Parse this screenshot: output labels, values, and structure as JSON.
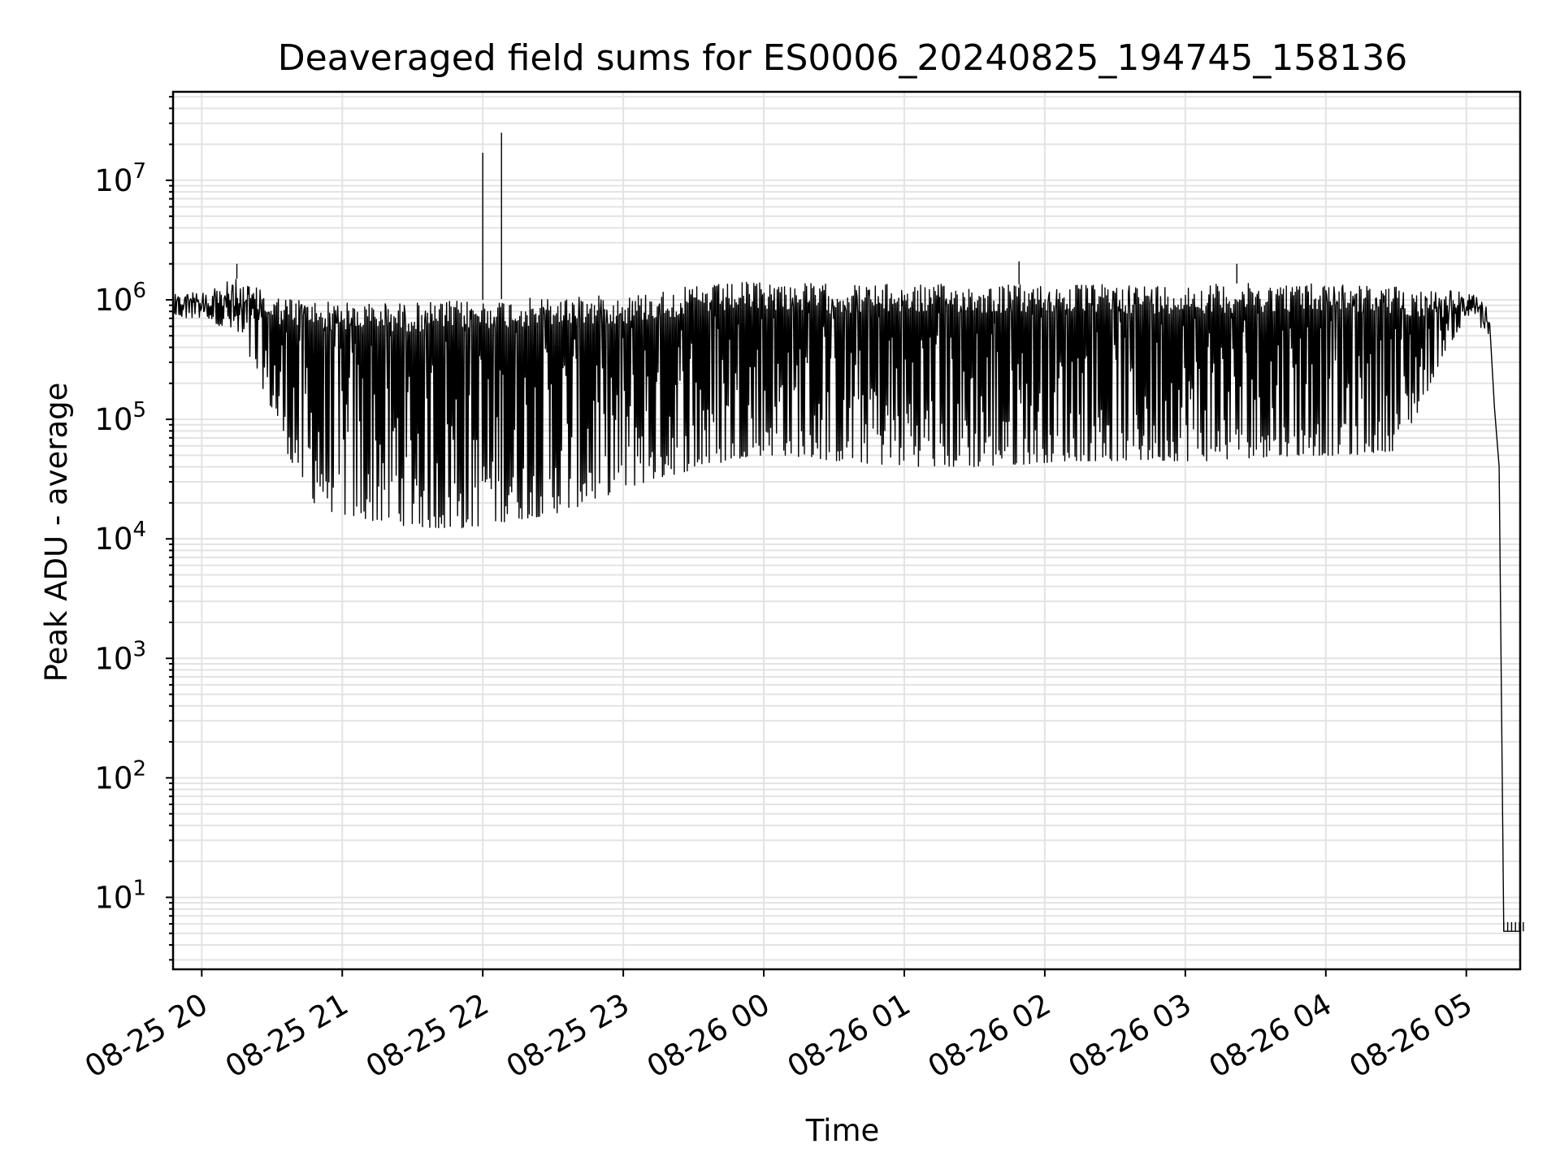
{
  "chart_data": {
    "type": "line",
    "title": "Deaveraged field sums for ES0006_20240825_194745_158136",
    "xlabel": "Time",
    "ylabel": "Peak ADU - average",
    "yscale": "log",
    "ylim": [
      2.5,
      55000000
    ],
    "xlim": [
      "2024-08-25 19:47:45",
      "2024-08-26 05:23:00"
    ],
    "grid": true,
    "line_color": "#000000",
    "x_ticks": [
      {
        "t": "2024-08-25 20:00",
        "label": "08-25 20"
      },
      {
        "t": "2024-08-25 21:00",
        "label": "08-25 21"
      },
      {
        "t": "2024-08-25 22:00",
        "label": "08-25 22"
      },
      {
        "t": "2024-08-25 23:00",
        "label": "08-25 23"
      },
      {
        "t": "2024-08-26 00:00",
        "label": "08-26 00"
      },
      {
        "t": "2024-08-26 01:00",
        "label": "08-26 01"
      },
      {
        "t": "2024-08-26 02:00",
        "label": "08-26 02"
      },
      {
        "t": "2024-08-26 03:00",
        "label": "08-26 03"
      },
      {
        "t": "2024-08-26 04:00",
        "label": "08-26 04"
      },
      {
        "t": "2024-08-26 05:00",
        "label": "08-26 05"
      }
    ],
    "y_ticks": [
      {
        "value": 10,
        "base": "10",
        "exp": "1"
      },
      {
        "value": 100,
        "base": "10",
        "exp": "2"
      },
      {
        "value": 1000,
        "base": "10",
        "exp": "3"
      },
      {
        "value": 10000,
        "base": "10",
        "exp": "4"
      },
      {
        "value": 100000,
        "base": "10",
        "exp": "5"
      },
      {
        "value": 1000000,
        "base": "10",
        "exp": "6"
      },
      {
        "value": 10000000,
        "base": "10",
        "exp": "7"
      }
    ],
    "series": [
      {
        "points": [
          [
            "2024-08-25 19:47:45",
            850000
          ],
          [
            "2024-08-25 19:52",
            900000
          ],
          [
            "2024-08-25 19:57",
            1000000
          ],
          [
            "2024-08-25 20:03",
            700000
          ],
          [
            "2024-08-25 20:08",
            600000
          ],
          [
            "2024-08-25 20:13",
            550000
          ],
          [
            "2024-08-25 20:18",
            400000
          ],
          [
            "2024-08-25 20:23",
            250000
          ],
          [
            "2024-08-25 20:28",
            150000
          ],
          [
            "2024-08-25 20:33",
            80000
          ],
          [
            "2024-08-25 20:38",
            45000
          ],
          [
            "2024-08-25 20:43",
            28000
          ],
          [
            "2024-08-25 20:48",
            20000
          ],
          [
            "2024-08-25 20:55",
            17000
          ],
          [
            "2024-08-25 21:05",
            15000
          ],
          [
            "2024-08-25 21:15",
            14000
          ],
          [
            "2024-08-25 21:25",
            13000
          ],
          [
            "2024-08-25 21:35",
            12500
          ],
          [
            "2024-08-25 21:45",
            12000
          ],
          [
            "2024-08-25 21:55",
            12500
          ],
          [
            "2024-08-25 22:05",
            13500
          ],
          [
            "2024-08-25 22:15",
            14500
          ],
          [
            "2024-08-25 22:25",
            15500
          ],
          [
            "2024-08-25 22:35",
            17000
          ],
          [
            "2024-08-25 22:45",
            20000
          ],
          [
            "2024-08-25 22:55",
            24000
          ],
          [
            "2024-08-25 23:05",
            28000
          ],
          [
            "2024-08-25 23:15",
            32000
          ],
          [
            "2024-08-25 23:25",
            36000
          ],
          [
            "2024-08-25 23:35",
            40000
          ],
          [
            "2024-08-25 23:45",
            45000
          ],
          [
            "2024-08-25 23:55",
            50000
          ],
          [
            "2024-08-26 00:10",
            50000
          ],
          [
            "2024-08-26 00:30",
            45000
          ],
          [
            "2024-08-26 00:50",
            42000
          ],
          [
            "2024-08-26 01:10",
            40000
          ],
          [
            "2024-08-26 01:30",
            40000
          ],
          [
            "2024-08-26 01:50",
            42000
          ],
          [
            "2024-08-26 02:10",
            45000
          ],
          [
            "2024-08-26 02:30",
            45000
          ],
          [
            "2024-08-26 02:50",
            45000
          ],
          [
            "2024-08-26 03:10",
            45000
          ],
          [
            "2024-08-26 03:30",
            48000
          ],
          [
            "2024-08-26 03:50",
            50000
          ],
          [
            "2024-08-26 04:10",
            50000
          ],
          [
            "2024-08-26 04:30",
            55000
          ],
          [
            "2024-08-26 04:40",
            120000
          ],
          [
            "2024-08-26 04:50",
            350000
          ],
          [
            "2024-08-26 05:00",
            700000
          ],
          [
            "2024-08-26 05:05",
            900000
          ],
          [
            "2024-08-26 05:10",
            400000
          ],
          [
            "2024-08-26 05:14",
            40000
          ],
          [
            "2024-08-26 05:16",
            5.2
          ],
          [
            "2024-08-26 05:23",
            5.2
          ]
        ],
        "upper_envelope": [
          [
            "2024-08-25 19:47:45",
            1100000
          ],
          [
            "2024-08-25 20:15",
            1500000
          ],
          [
            "2024-08-25 20:30",
            1100000
          ],
          [
            "2024-08-25 21:00",
            950000
          ],
          [
            "2024-08-25 21:30",
            950000
          ],
          [
            "2024-08-25 22:00",
            1000000
          ],
          [
            "2024-08-25 22:30",
            1050000
          ],
          [
            "2024-08-25 23:00",
            1100000
          ],
          [
            "2024-08-25 23:30",
            1300000
          ],
          [
            "2024-08-26 00:00",
            1450000
          ],
          [
            "2024-08-26 00:30",
            1350000
          ],
          [
            "2024-08-26 01:00",
            1350000
          ],
          [
            "2024-08-26 02:00",
            1350000
          ],
          [
            "2024-08-26 03:00",
            1350000
          ],
          [
            "2024-08-26 04:00",
            1400000
          ],
          [
            "2024-08-26 05:00",
            1200000
          ],
          [
            "2024-08-26 05:10",
            900000
          ]
        ],
        "spikes": [
          [
            "2024-08-25 22:00",
            17000000
          ],
          [
            "2024-08-25 22:08",
            25000000
          ],
          [
            "2024-08-25 20:15",
            2000000
          ],
          [
            "2024-08-26 01:49",
            2100000
          ],
          [
            "2024-08-26 03:22",
            2000000
          ]
        ]
      }
    ]
  }
}
